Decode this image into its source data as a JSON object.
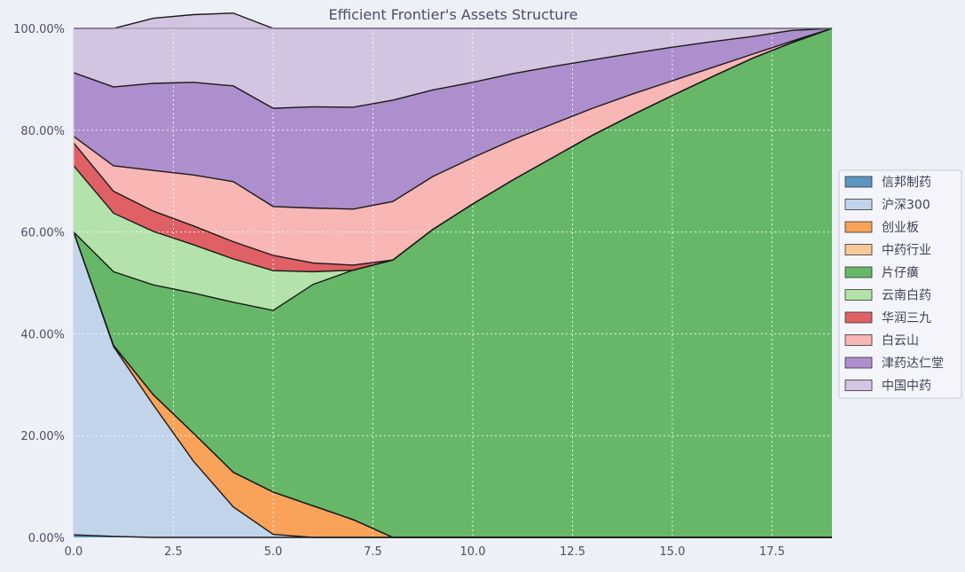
{
  "chart_data": {
    "type": "area",
    "stacked": true,
    "title": "Efficient Frontier's Assets Structure",
    "xlabel": "",
    "ylabel": "",
    "xlim": [
      0,
      19
    ],
    "ylim": [
      0,
      100
    ],
    "x_ticks": [
      0,
      2.5,
      5,
      7.5,
      10,
      12.5,
      15,
      17.5
    ],
    "x_tick_labels": [
      "0.0",
      "2.5",
      "5.0",
      "7.5",
      "10.0",
      "12.5",
      "15.0",
      "17.5"
    ],
    "y_ticks": [
      0,
      20,
      40,
      60,
      80,
      100
    ],
    "y_tick_labels": [
      "0.00%",
      "20.00%",
      "40.00%",
      "60.00%",
      "80.00%",
      "100.00%"
    ],
    "grid": true,
    "legend_position": "right",
    "x": [
      0,
      1,
      2,
      3,
      4,
      5,
      6,
      7,
      8,
      9,
      10,
      11,
      12,
      13,
      14,
      15,
      16,
      17,
      18,
      19
    ],
    "series": [
      {
        "name": "信邦制药",
        "color": "#5b96c2",
        "values": [
          0.5,
          0.2,
          0,
          0,
          0,
          0,
          0,
          0,
          0,
          0,
          0,
          0,
          0,
          0,
          0,
          0,
          0,
          0,
          0,
          0
        ]
      },
      {
        "name": "沪深300",
        "color": "#c2d4ea",
        "values": [
          59.5,
          37.3,
          26,
          15,
          6,
          0.6,
          0,
          0,
          0,
          0,
          0,
          0,
          0,
          0,
          0,
          0,
          0,
          0,
          0,
          0
        ]
      },
      {
        "name": "创业板",
        "color": "#f8a25a",
        "values": [
          0,
          0.2,
          2,
          5.5,
          6.8,
          8.3,
          6.2,
          3.5,
          0,
          0,
          0,
          0,
          0,
          0,
          0,
          0,
          0,
          0,
          0,
          0
        ]
      },
      {
        "name": "中药行业",
        "color": "#f7c89a",
        "values": [
          0,
          0,
          0,
          0,
          0,
          0,
          0,
          0,
          0,
          0,
          0,
          0,
          0,
          0,
          0,
          0,
          0,
          0,
          0,
          0
        ]
      },
      {
        "name": "片仔癀",
        "color": "#66b868",
        "values": [
          0,
          14.5,
          21.6,
          27.5,
          33.4,
          35.7,
          43.5,
          49,
          54.5,
          60.5,
          65.5,
          70.2,
          74.6,
          79,
          83,
          86.8,
          90.5,
          94.1,
          97.2,
          100
        ]
      },
      {
        "name": "云南白药",
        "color": "#b3e3aa",
        "values": [
          13,
          11.5,
          10.5,
          9.5,
          8.5,
          7.8,
          2.5,
          0,
          0,
          0,
          0,
          0,
          0,
          0,
          0,
          0,
          0,
          0,
          0,
          0
        ]
      },
      {
        "name": "华润三九",
        "color": "#df6065",
        "values": [
          4.5,
          4.3,
          4,
          3.7,
          3.4,
          3,
          1.7,
          1,
          0,
          0,
          0,
          0,
          0,
          0,
          0,
          0,
          0,
          0,
          0,
          0
        ]
      },
      {
        "name": "白云山",
        "color": "#f8b6b5",
        "values": [
          1.3,
          5,
          8,
          10,
          11.8,
          9.6,
          10.8,
          11,
          11.5,
          10.4,
          9.1,
          7.9,
          6.6,
          5.3,
          4.1,
          2.9,
          1.8,
          0.8,
          0.3,
          0
        ]
      },
      {
        "name": "津药达仁堂",
        "color": "#ad8fcd",
        "values": [
          12.5,
          15.5,
          17.1,
          18.2,
          18.8,
          19.3,
          19.9,
          20,
          19.9,
          17,
          14.8,
          13,
          11.3,
          9.5,
          8,
          6.6,
          5.1,
          3.5,
          2.1,
          0
        ]
      },
      {
        "name": "中国中药",
        "color": "#d3c4e1",
        "values": [
          8.7,
          11.5,
          12.8,
          13.3,
          14.3,
          15.7,
          15.4,
          15.5,
          14.1,
          12.1,
          10.6,
          8.9,
          7.5,
          6.2,
          4.9,
          3.7,
          2.6,
          1.6,
          0.4,
          0
        ]
      }
    ]
  }
}
